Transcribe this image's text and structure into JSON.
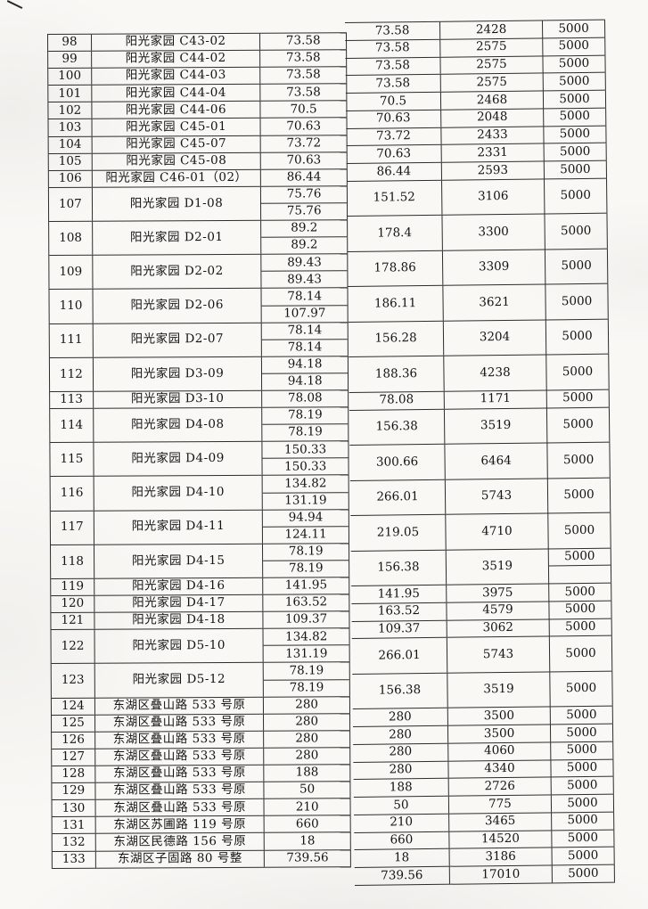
{
  "document": {
    "kind": "scanned table page",
    "line_color": "#2c2c2c",
    "paper_color": "#f9f8f5",
    "cap_constant": "5000"
  },
  "table": {
    "rows": [
      {
        "no": "98",
        "name": "阳光家园 C43-02",
        "areas": [
          "73.58"
        ],
        "total": "73.58",
        "amount": "2428",
        "cap": "5000"
      },
      {
        "no": "99",
        "name": "阳光家园 C44-02",
        "areas": [
          "73.58"
        ],
        "total": "73.58",
        "amount": "2575",
        "cap": "5000"
      },
      {
        "no": "100",
        "name": "阳光家园 C44-03",
        "areas": [
          "73.58"
        ],
        "total": "73.58",
        "amount": "2575",
        "cap": "5000"
      },
      {
        "no": "101",
        "name": "阳光家园 C44-04",
        "areas": [
          "73.58"
        ],
        "total": "73.58",
        "amount": "2575",
        "cap": "5000"
      },
      {
        "no": "102",
        "name": "阳光家园 C44-06",
        "areas": [
          "70.5"
        ],
        "total": "70.5",
        "amount": "2468",
        "cap": "5000"
      },
      {
        "no": "103",
        "name": "阳光家园 C45-01",
        "areas": [
          "70.63"
        ],
        "total": "70.63",
        "amount": "2048",
        "cap": "5000"
      },
      {
        "no": "104",
        "name": "阳光家园 C45-07",
        "areas": [
          "73.72"
        ],
        "total": "73.72",
        "amount": "2433",
        "cap": "5000"
      },
      {
        "no": "105",
        "name": "阳光家园 C45-08",
        "areas": [
          "70.63"
        ],
        "total": "70.63",
        "amount": "2331",
        "cap": "5000"
      },
      {
        "no": "106",
        "name": "阳光家园 C46-01（02）",
        "areas": [
          "86.44"
        ],
        "total": "86.44",
        "amount": "2593",
        "cap": "5000"
      },
      {
        "no": "107",
        "name": "阳光家园 D1-08",
        "areas": [
          "75.76",
          "75.76"
        ],
        "total": "151.52",
        "amount": "3106",
        "cap": "5000"
      },
      {
        "no": "108",
        "name": "阳光家园 D2-01",
        "areas": [
          "89.2",
          "89.2"
        ],
        "total": "178.4",
        "amount": "3300",
        "cap": "5000"
      },
      {
        "no": "109",
        "name": "阳光家园 D2-02",
        "areas": [
          "89.43",
          "89.43"
        ],
        "total": "178.86",
        "amount": "3309",
        "cap": "5000"
      },
      {
        "no": "110",
        "name": "阳光家园 D2-06",
        "areas": [
          "78.14",
          "107.97"
        ],
        "total": "186.11",
        "amount": "3621",
        "cap": "5000"
      },
      {
        "no": "111",
        "name": "阳光家园 D2-07",
        "areas": [
          "78.14",
          "78.14"
        ],
        "total": "156.28",
        "amount": "3204",
        "cap": "5000"
      },
      {
        "no": "112",
        "name": "阳光家园 D3-09",
        "areas": [
          "94.18",
          "94.18"
        ],
        "total": "188.36",
        "amount": "4238",
        "cap": "5000"
      },
      {
        "no": "113",
        "name": "阳光家园 D3-10",
        "areas": [
          "78.08"
        ],
        "total": "78.08",
        "amount": "1171",
        "cap": "5000"
      },
      {
        "no": "114",
        "name": "阳光家园 D4-08",
        "areas": [
          "78.19",
          "78.19"
        ],
        "total": "156.38",
        "amount": "3519",
        "cap": "5000"
      },
      {
        "no": "115",
        "name": "阳光家园 D4-09",
        "areas": [
          "150.33",
          "150.33"
        ],
        "total": "300.66",
        "amount": "6464",
        "cap": "5000"
      },
      {
        "no": "116",
        "name": "阳光家园 D4-10",
        "areas": [
          "134.82",
          "131.19"
        ],
        "total": "266.01",
        "amount": "5743",
        "cap": "5000"
      },
      {
        "no": "117",
        "name": "阳光家园 D4-11",
        "areas": [
          "94.94",
          "124.11"
        ],
        "total": "219.05",
        "amount": "4710",
        "cap": "5000"
      },
      {
        "no": "118",
        "name": "阳光家园 D4-15",
        "areas": [
          "78.19",
          "78.19"
        ],
        "total": "156.38",
        "amount": "3519",
        "cap": "5000",
        "cap_split": true
      },
      {
        "no": "119",
        "name": "阳光家园 D4-16",
        "areas": [
          "141.95"
        ],
        "total": "141.95",
        "amount": "3975",
        "cap": "5000"
      },
      {
        "no": "120",
        "name": "阳光家园 D4-17",
        "areas": [
          "163.52"
        ],
        "total": "163.52",
        "amount": "4579",
        "cap": "5000"
      },
      {
        "no": "121",
        "name": "阳光家园 D4-18",
        "areas": [
          "109.37"
        ],
        "total": "109.37",
        "amount": "3062",
        "cap": "5000"
      },
      {
        "no": "122",
        "name": "阳光家园 D5-10",
        "areas": [
          "134.82",
          "131.19"
        ],
        "total": "266.01",
        "amount": "5743",
        "cap": "5000"
      },
      {
        "no": "123",
        "name": "阳光家园 D5-12",
        "areas": [
          "78.19",
          "78.19"
        ],
        "total": "156.38",
        "amount": "3519",
        "cap": "5000"
      },
      {
        "no": "124",
        "name": "东湖区叠山路 533 号原",
        "areas": [
          "280"
        ],
        "total": "280",
        "amount": "3500",
        "cap": "5000"
      },
      {
        "no": "125",
        "name": "东湖区叠山路 533 号原",
        "areas": [
          "280"
        ],
        "total": "280",
        "amount": "3500",
        "cap": "5000"
      },
      {
        "no": "126",
        "name": "东湖区叠山路 533 号原",
        "areas": [
          "280"
        ],
        "total": "280",
        "amount": "4060",
        "cap": "5000"
      },
      {
        "no": "127",
        "name": "东湖区叠山路 533 号原",
        "areas": [
          "280"
        ],
        "total": "280",
        "amount": "4340",
        "cap": "5000"
      },
      {
        "no": "128",
        "name": "东湖区叠山路 533 号原",
        "areas": [
          "188"
        ],
        "total": "188",
        "amount": "2726",
        "cap": "5000"
      },
      {
        "no": "129",
        "name": "东湖区叠山路 533 号原",
        "areas": [
          "50"
        ],
        "total": "50",
        "amount": "775",
        "cap": "5000"
      },
      {
        "no": "130",
        "name": "东湖区叠山路 533 号原",
        "areas": [
          "210"
        ],
        "total": "210",
        "amount": "3465",
        "cap": "5000"
      },
      {
        "no": "131",
        "name": "东湖区苏圃路 119 号原",
        "areas": [
          "660"
        ],
        "total": "660",
        "amount": "14520",
        "cap": "5000"
      },
      {
        "no": "132",
        "name": "东湖区民德路 156 号原",
        "areas": [
          "18"
        ],
        "total": "18",
        "amount": "3186",
        "cap": "5000"
      },
      {
        "no": "133",
        "name": "东湖区子固路 80 号整",
        "areas": [
          "739.56"
        ],
        "total": "739.56",
        "amount": "17010",
        "cap": "5000"
      }
    ]
  }
}
